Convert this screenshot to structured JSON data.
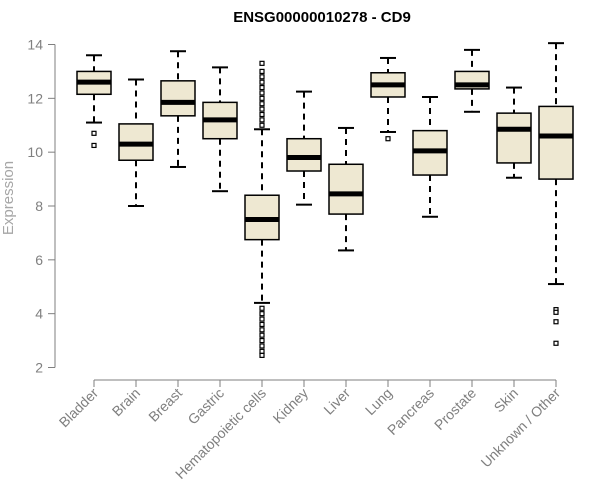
{
  "chart_data": {
    "type": "boxplot",
    "title": "ENSG00000010278 - CD9",
    "xlabel": "",
    "ylabel": "Expression",
    "ylim": [
      2,
      14
    ],
    "yticks": [
      2,
      4,
      6,
      8,
      10,
      12,
      14
    ],
    "colors": {
      "box_fill": "#EEE8D2",
      "line": "#000000",
      "axis": "#7f7f7f"
    },
    "categories": [
      "Bladder",
      "Brain",
      "Breast",
      "Gastric",
      "Hematopoietic cells",
      "Kidney",
      "Liver",
      "Lung",
      "Pancreas",
      "Prostate",
      "Skin",
      "Unknown / Other"
    ],
    "boxes": [
      {
        "name": "Bladder",
        "whisker_low": 11.1,
        "q1": 12.15,
        "median": 12.6,
        "q3": 13.0,
        "whisker_high": 13.6,
        "outliers": [
          10.7,
          10.25
        ]
      },
      {
        "name": "Brain",
        "whisker_low": 8.0,
        "q1": 9.7,
        "median": 10.3,
        "q3": 11.05,
        "whisker_high": 12.7,
        "outliers": []
      },
      {
        "name": "Breast",
        "whisker_low": 9.45,
        "q1": 11.35,
        "median": 11.85,
        "q3": 12.65,
        "whisker_high": 13.75,
        "outliers": []
      },
      {
        "name": "Gastric",
        "whisker_low": 8.55,
        "q1": 10.5,
        "median": 11.2,
        "q3": 11.85,
        "whisker_high": 13.15,
        "outliers": []
      },
      {
        "name": "Hematopoietic cells",
        "whisker_low": 4.4,
        "q1": 6.75,
        "median": 7.5,
        "q3": 8.4,
        "whisker_high": 10.85,
        "outliers": [
          11.0,
          11.2,
          11.4,
          11.6,
          11.8,
          12.0,
          12.2,
          12.4,
          12.6,
          12.8,
          13.0,
          13.3,
          4.2,
          4.0,
          3.8,
          3.6,
          3.4,
          3.2,
          3.0,
          2.8,
          2.6,
          2.45
        ]
      },
      {
        "name": "Kidney",
        "whisker_low": 8.05,
        "q1": 9.3,
        "median": 9.8,
        "q3": 10.5,
        "whisker_high": 12.25,
        "outliers": []
      },
      {
        "name": "Liver",
        "whisker_low": 6.35,
        "q1": 7.7,
        "median": 8.45,
        "q3": 9.55,
        "whisker_high": 10.9,
        "outliers": []
      },
      {
        "name": "Lung",
        "whisker_low": 10.75,
        "q1": 12.05,
        "median": 12.5,
        "q3": 12.95,
        "whisker_high": 13.5,
        "outliers": [
          10.5
        ]
      },
      {
        "name": "Pancreas",
        "whisker_low": 7.6,
        "q1": 9.15,
        "median": 10.05,
        "q3": 10.8,
        "whisker_high": 12.05,
        "outliers": []
      },
      {
        "name": "Prostate",
        "whisker_low": 11.5,
        "q1": 12.35,
        "median": 12.5,
        "q3": 13.0,
        "whisker_high": 13.8,
        "outliers": []
      },
      {
        "name": "Skin",
        "whisker_low": 9.05,
        "q1": 9.6,
        "median": 10.85,
        "q3": 11.45,
        "whisker_high": 12.4,
        "outliers": []
      },
      {
        "name": "Unknown / Other",
        "whisker_low": 5.1,
        "q1": 9.0,
        "median": 10.6,
        "q3": 11.7,
        "whisker_high": 14.05,
        "outliers": [
          4.15,
          4.05,
          3.7,
          2.9
        ]
      }
    ]
  }
}
